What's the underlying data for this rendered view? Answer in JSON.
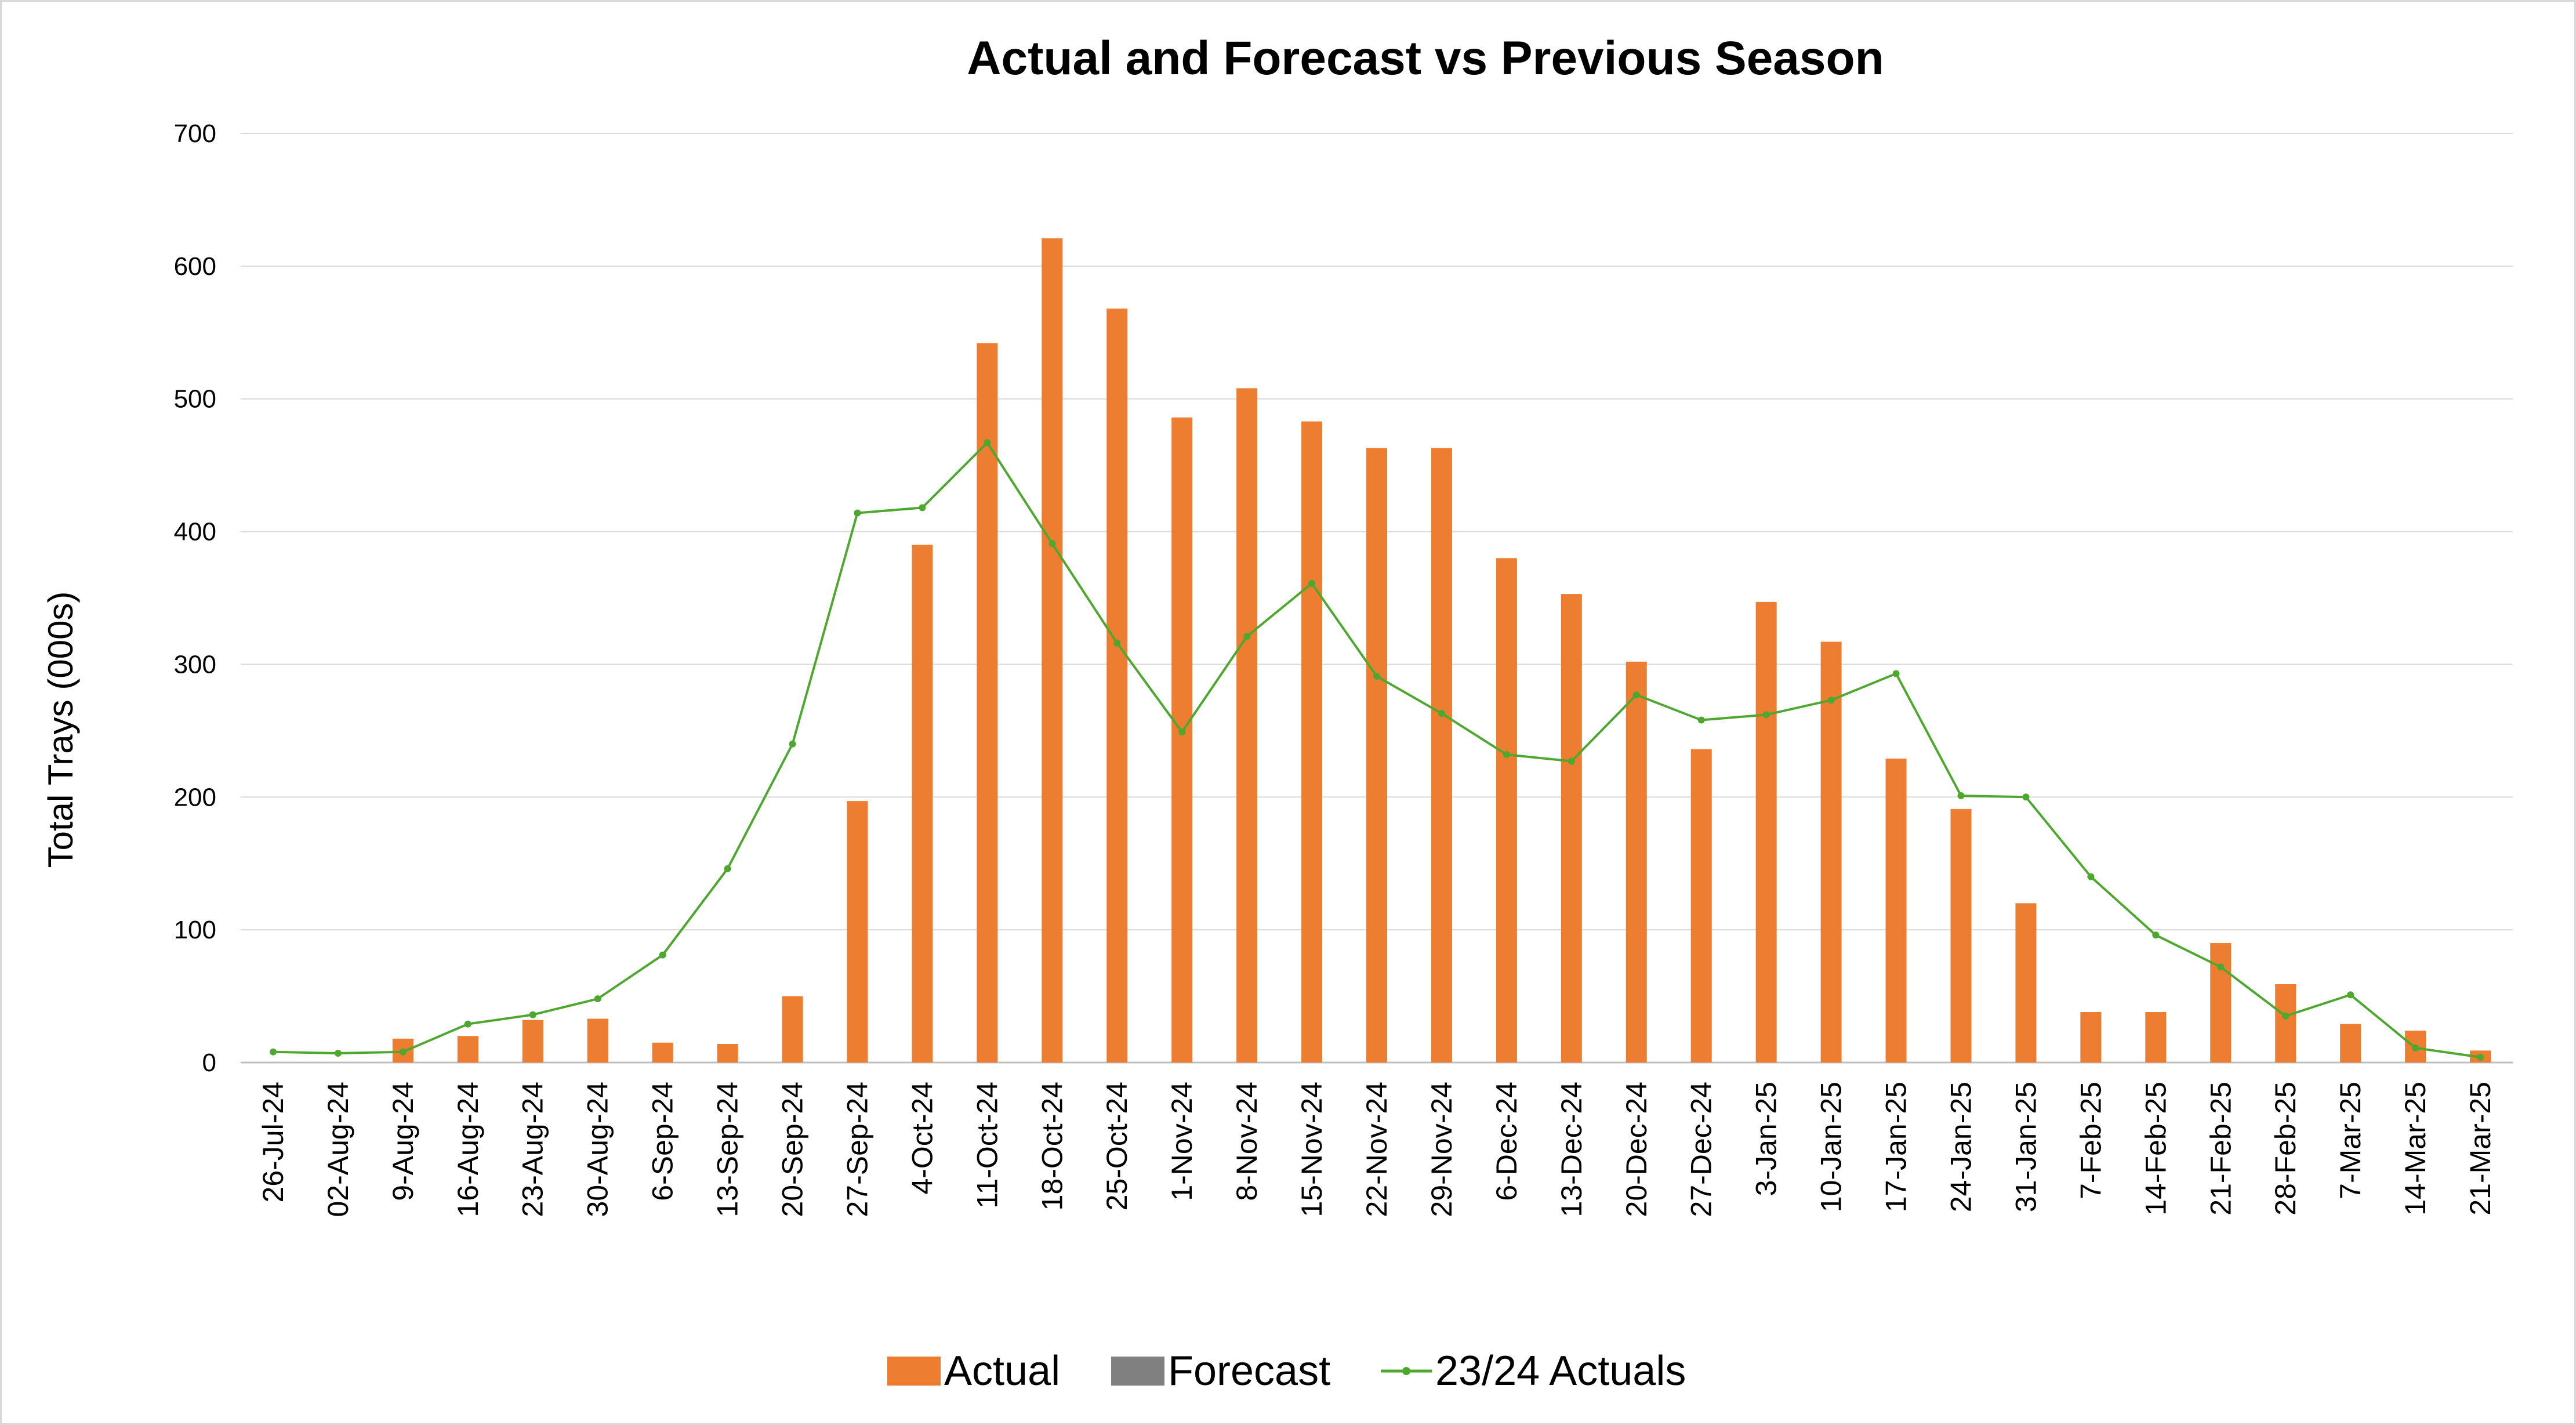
{
  "colors": {
    "actual": "#ED7D31",
    "forecast": "#808080",
    "prev": "#4EA72E",
    "grid": "#d9d9d9",
    "axis": "#bfbfbf"
  },
  "chart_data": {
    "type": "bar",
    "title": "Actual and Forecast vs Previous Season",
    "xlabel": "",
    "ylabel": "Total Trays (000s)",
    "ylim": [
      0,
      700
    ],
    "yticks": [
      0,
      100,
      200,
      300,
      400,
      500,
      600,
      700
    ],
    "grid": true,
    "legend_position": "bottom",
    "categories": [
      "26-Jul-24",
      "02-Aug-24",
      "9-Aug-24",
      "16-Aug-24",
      "23-Aug-24",
      "30-Aug-24",
      "6-Sep-24",
      "13-Sep-24",
      "20-Sep-24",
      "27-Sep-24",
      "4-Oct-24",
      "11-Oct-24",
      "18-Oct-24",
      "25-Oct-24",
      "1-Nov-24",
      "8-Nov-24",
      "15-Nov-24",
      "22-Nov-24",
      "29-Nov-24",
      "6-Dec-24",
      "13-Dec-24",
      "20-Dec-24",
      "27-Dec-24",
      "3-Jan-25",
      "10-Jan-25",
      "17-Jan-25",
      "24-Jan-25",
      "31-Jan-25",
      "7-Feb-25",
      "14-Feb-25",
      "21-Feb-25",
      "28-Feb-25",
      "7-Mar-25",
      "14-Mar-25",
      "21-Mar-25"
    ],
    "series": [
      {
        "name": "Actual",
        "type": "bar",
        "values": [
          0,
          0,
          18,
          20,
          32,
          33,
          15,
          14,
          50,
          197,
          390,
          542,
          621,
          568,
          486,
          508,
          483,
          463,
          463,
          380,
          353,
          302,
          236,
          347,
          317,
          229,
          191,
          120,
          38,
          38,
          90,
          59,
          29,
          24,
          9
        ]
      },
      {
        "name": "Forecast",
        "type": "bar",
        "values": [
          0,
          0,
          0,
          0,
          0,
          0,
          0,
          0,
          0,
          0,
          0,
          0,
          0,
          0,
          0,
          0,
          0,
          0,
          0,
          0,
          0,
          0,
          0,
          0,
          0,
          0,
          0,
          0,
          0,
          0,
          0,
          0,
          0,
          0,
          0
        ]
      },
      {
        "name": "23/24 Actuals",
        "type": "line",
        "values": [
          8,
          7,
          8,
          29,
          36,
          48,
          81,
          146,
          240,
          414,
          418,
          467,
          391,
          316,
          249,
          321,
          361,
          291,
          263,
          232,
          227,
          277,
          258,
          262,
          273,
          293,
          201,
          200,
          140,
          96,
          72,
          35,
          51,
          11,
          4
        ]
      }
    ]
  }
}
